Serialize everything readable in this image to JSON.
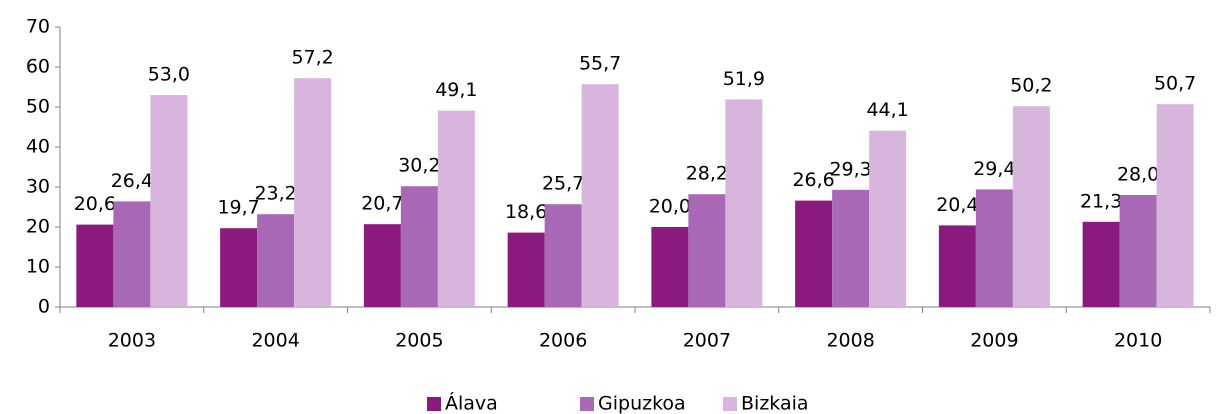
{
  "chart_data": {
    "type": "bar",
    "categories": [
      "2003",
      "2004",
      "2005",
      "2006",
      "2007",
      "2008",
      "2009",
      "2010"
    ],
    "series": [
      {
        "name": "Álava",
        "color": "#8b1a7f",
        "values": [
          20.6,
          19.7,
          20.7,
          18.6,
          20.0,
          26.6,
          20.4,
          21.3
        ],
        "value_labels": [
          "20,6",
          "19,7",
          "20,7",
          "18,6",
          "20,0",
          "26,6",
          "20,4",
          "21,3"
        ]
      },
      {
        "name": "Gipuzkoa",
        "color": "#a968b5",
        "values": [
          26.4,
          23.2,
          30.2,
          25.7,
          28.2,
          29.3,
          29.4,
          28.0
        ],
        "value_labels": [
          "26,4",
          "23,2",
          "30,2",
          "25,7",
          "28,2",
          "29,3",
          "29,4",
          "28,0"
        ]
      },
      {
        "name": "Bizkaia",
        "color": "#d8b5dd",
        "values": [
          53.0,
          57.2,
          49.1,
          55.7,
          51.9,
          44.1,
          50.2,
          50.7
        ],
        "value_labels": [
          "53,0",
          "57,2",
          "49,1",
          "55,7",
          "51,9",
          "44,1",
          "50,2",
          "50,7"
        ]
      }
    ],
    "ylim": [
      0,
      70
    ],
    "yticks": [
      0,
      10,
      20,
      30,
      40,
      50,
      60,
      70
    ],
    "grid": false,
    "legend": "bottom"
  }
}
